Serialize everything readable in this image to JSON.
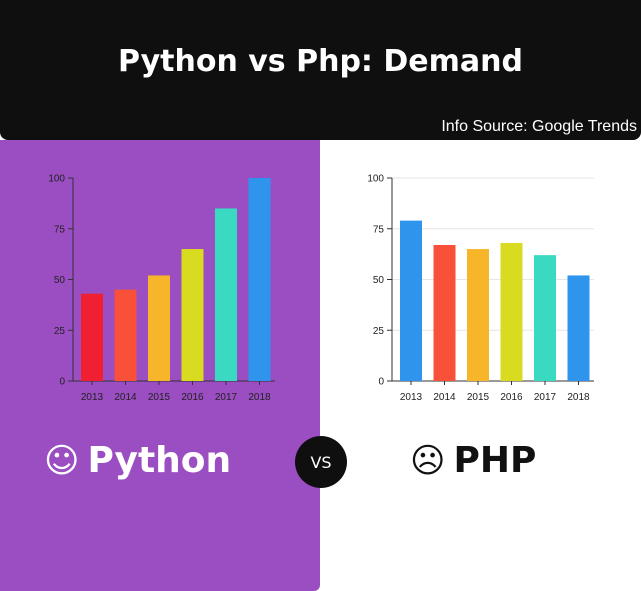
{
  "header": {
    "title": "Python vs Php: Demand",
    "source": "Info Source: Google Trends"
  },
  "labels": {
    "left": "Python",
    "left_icon": "smiling-face-icon",
    "right": "PHP",
    "right_icon": "frowning-face-icon",
    "vs": "VS"
  },
  "chart_data": [
    {
      "type": "bar",
      "categories": [
        "2013",
        "2014",
        "2015",
        "2016",
        "2017",
        "2018"
      ],
      "values": [
        43,
        45,
        52,
        65,
        85,
        100
      ],
      "colors": [
        "#f01f32",
        "#f9503a",
        "#f7b52a",
        "#d9db20",
        "#3ad9c1",
        "#2f95ec"
      ],
      "ylim": [
        0,
        100
      ],
      "yticks": [
        0,
        25,
        50,
        75,
        100
      ],
      "grid": false
    },
    {
      "type": "bar",
      "categories": [
        "2013",
        "2014",
        "2015",
        "2016",
        "2017",
        "2018"
      ],
      "values": [
        79,
        67,
        65,
        68,
        62,
        52
      ],
      "colors": [
        "#2f95ec",
        "#f9503a",
        "#f7b52a",
        "#d9db20",
        "#3ad9c1",
        "#2f95ec"
      ],
      "ylim": [
        0,
        100
      ],
      "yticks": [
        0,
        25,
        50,
        75,
        100
      ],
      "grid": true
    }
  ]
}
